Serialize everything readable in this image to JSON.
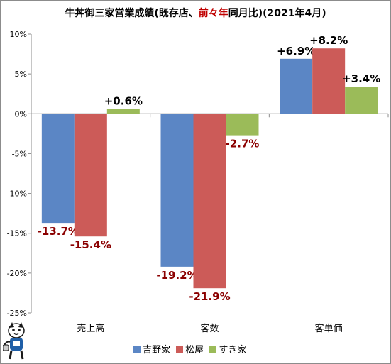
{
  "title_parts": {
    "before": "牛丼御三家営業成績(既存店、",
    "accent": "前々年",
    "after": "同月比)(2021年4月)"
  },
  "colors": {
    "positive_label": "#000000",
    "negative_label": "#8b0000",
    "title_accent": "#c00000"
  },
  "chart_data": {
    "type": "bar",
    "categories": [
      "売上高",
      "客数",
      "客単価"
    ],
    "series": [
      {
        "name": "吉野家",
        "color": "#5b86c5",
        "values": [
          -13.7,
          -19.2,
          6.9
        ]
      },
      {
        "name": "松屋",
        "color": "#cc5b58",
        "values": [
          -15.4,
          -21.9,
          8.2
        ]
      },
      {
        "name": "すき家",
        "color": "#9bbb59",
        "values": [
          0.6,
          -2.7,
          3.4
        ]
      }
    ],
    "data_labels": [
      [
        "-13.7%",
        "-19.2%",
        "+6.9%"
      ],
      [
        "-15.4%",
        "-21.9%",
        "+8.2%"
      ],
      [
        "+0.6%",
        "-2.7%",
        "+3.4%"
      ]
    ],
    "yticks": [
      10,
      5,
      0,
      -5,
      -10,
      -15,
      -20,
      -25
    ],
    "ytick_labels": [
      "10%",
      "5%",
      "0%",
      "-5%",
      "-10%",
      "-15%",
      "-20%",
      "-25%"
    ],
    "ylim": [
      -25,
      10
    ],
    "legend_position": "bottom",
    "grid": false
  }
}
